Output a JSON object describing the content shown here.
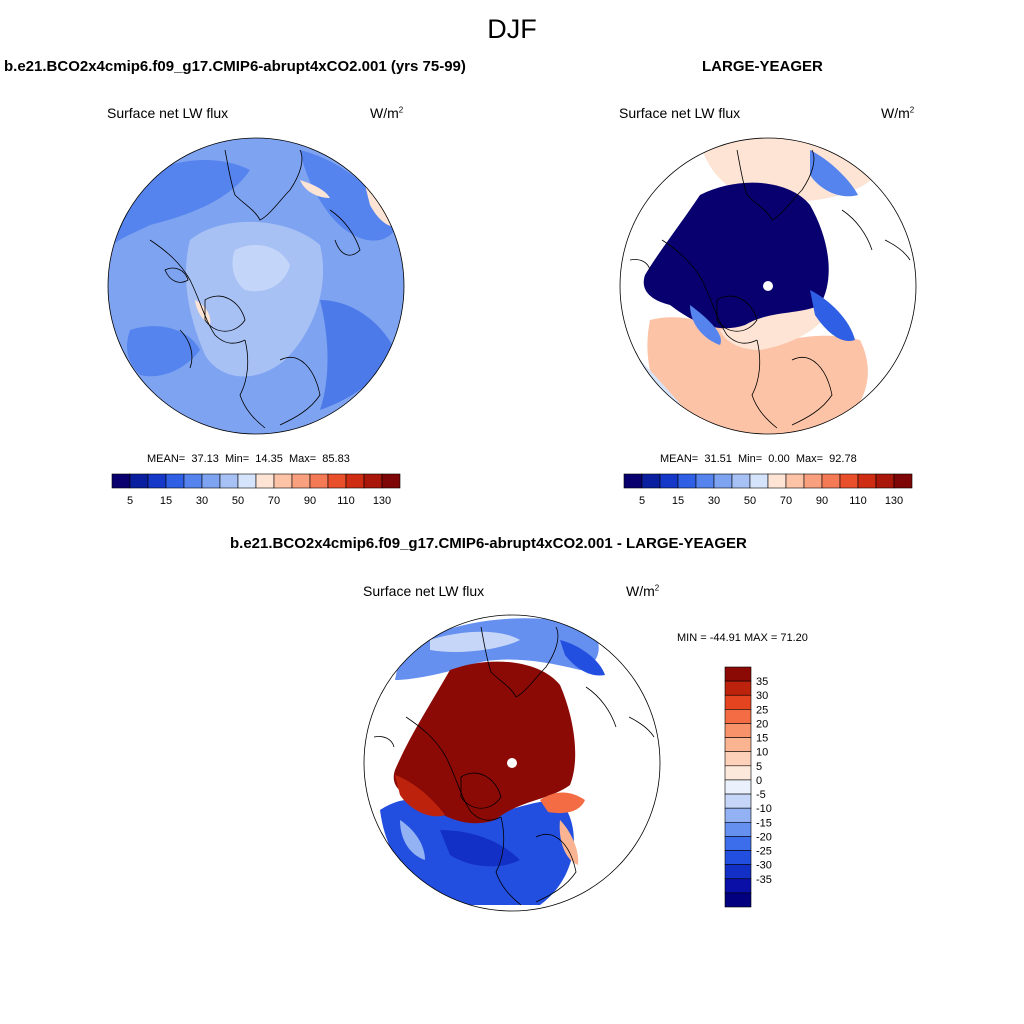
{
  "title": "DJF",
  "colors": {
    "seq_scale": [
      "#08006e",
      "#0a1fa0",
      "#1638c8",
      "#2f5fe4",
      "#5584ee",
      "#7ea3f1",
      "#a8c1f5",
      "#d6e4fb",
      "#fde4d4",
      "#fcc3a7",
      "#f9a07e",
      "#f47a56",
      "#ea4f2c",
      "#cf2d13",
      "#a9160a",
      "#7e0606"
    ],
    "diff_scale": [
      "#02007e",
      "#0a0fa8",
      "#1330c6",
      "#234fe0",
      "#3c6eec",
      "#6590f0",
      "#93b2f4",
      "#c6d6f8",
      "#ebf1fc",
      "#fde9dc",
      "#fcd0b9",
      "#fbb492",
      "#f8926a",
      "#f36c43",
      "#e44520",
      "#bd230c",
      "#8c0a05"
    ],
    "land": "#ffffff",
    "coast": "#000000"
  },
  "chart_data": [
    {
      "type": "heatmap",
      "projection": "polar-stereographic",
      "panel_title": "b.e21.BCO2x4cmip6.f09_g17.CMIP6-abrupt4xCO2.001 (yrs 75-99)",
      "variable": "Surface net LW flux",
      "units": "W/m",
      "units_sup": "2",
      "stats": {
        "mean_label": "MEAN=",
        "mean": "37.13",
        "min_label": "Min=",
        "min": "14.35",
        "max_label": "Max=",
        "max": "85.83"
      },
      "colorbar": {
        "orientation": "horizontal",
        "levels": [
          5,
          10,
          15,
          20,
          30,
          40,
          50,
          60,
          70,
          80,
          90,
          100,
          110,
          120,
          130
        ],
        "tick_labels": [
          "5",
          "15",
          "30",
          "50",
          "70",
          "90",
          "110",
          "130"
        ]
      }
    },
    {
      "type": "heatmap",
      "projection": "polar-stereographic",
      "panel_title": "LARGE-YEAGER",
      "variable": "Surface net LW flux",
      "units": "W/m",
      "units_sup": "2",
      "stats": {
        "mean_label": "MEAN=",
        "mean": "31.51",
        "min_label": "Min=",
        "min": "0.00",
        "max_label": "Max=",
        "max": "92.78"
      },
      "colorbar": {
        "orientation": "horizontal",
        "levels": [
          5,
          10,
          15,
          20,
          30,
          40,
          50,
          60,
          70,
          80,
          90,
          100,
          110,
          120,
          130
        ],
        "tick_labels": [
          "5",
          "15",
          "30",
          "50",
          "70",
          "90",
          "110",
          "130"
        ]
      }
    },
    {
      "type": "heatmap",
      "projection": "polar-stereographic",
      "panel_title": "b.e21.BCO2x4cmip6.f09_g17.CMIP6-abrupt4xCO2.001 - LARGE-YEAGER",
      "variable": "Surface net LW flux",
      "units": "W/m",
      "units_sup": "2",
      "stats": {
        "min_label": "MIN =",
        "min": "-44.91",
        "max_label": "MAX =",
        "max": "71.20"
      },
      "colorbar": {
        "orientation": "vertical",
        "levels": [
          35,
          30,
          25,
          20,
          15,
          10,
          5,
          0,
          -5,
          -10,
          -15,
          -20,
          -25,
          -30,
          -35
        ],
        "tick_labels": [
          "35",
          "30",
          "25",
          "20",
          "15",
          "10",
          "5",
          "0",
          "-5",
          "-10",
          "-15",
          "-20",
          "-25",
          "-30",
          "-35"
        ]
      }
    }
  ]
}
